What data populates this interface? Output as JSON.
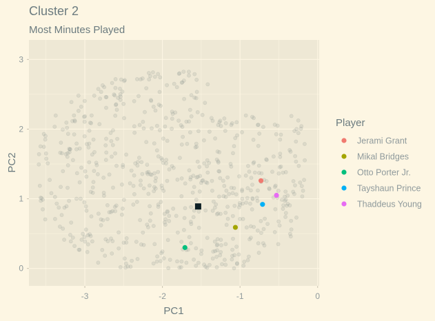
{
  "chart_data": {
    "type": "scatter",
    "title": "Cluster 2",
    "subtitle": "Most Minutes Played",
    "xlabel": "PC1",
    "ylabel": "PC2",
    "xlim": [
      -3.72,
      0.02
    ],
    "ylim": [
      -0.25,
      3.28
    ],
    "x_ticks": [
      -3,
      -2,
      -1,
      0
    ],
    "y_ticks": [
      0,
      1,
      2,
      3
    ],
    "grid": true,
    "legend_position": "right",
    "legend_title": "Player",
    "background_points": {
      "description_count": 640,
      "color": "#8b958f",
      "opacity": 0.18
    },
    "centroid": {
      "x": -1.54,
      "y": 0.89,
      "color": "#0d1f24"
    },
    "series": [
      {
        "name": "Jerami Grant",
        "color": "#f07a70",
        "x": -0.73,
        "y": 1.26
      },
      {
        "name": "Mikal Bridges",
        "color": "#a3a500",
        "x": -1.06,
        "y": 0.59
      },
      {
        "name": "Otto Porter Jr.",
        "color": "#00bf7d",
        "x": -1.71,
        "y": 0.3
      },
      {
        "name": "Tayshaun Prince",
        "color": "#00b0f6",
        "x": -0.71,
        "y": 0.92
      },
      {
        "name": "Thaddeus Young",
        "color": "#e76bf3",
        "x": -0.53,
        "y": 1.05
      }
    ]
  }
}
